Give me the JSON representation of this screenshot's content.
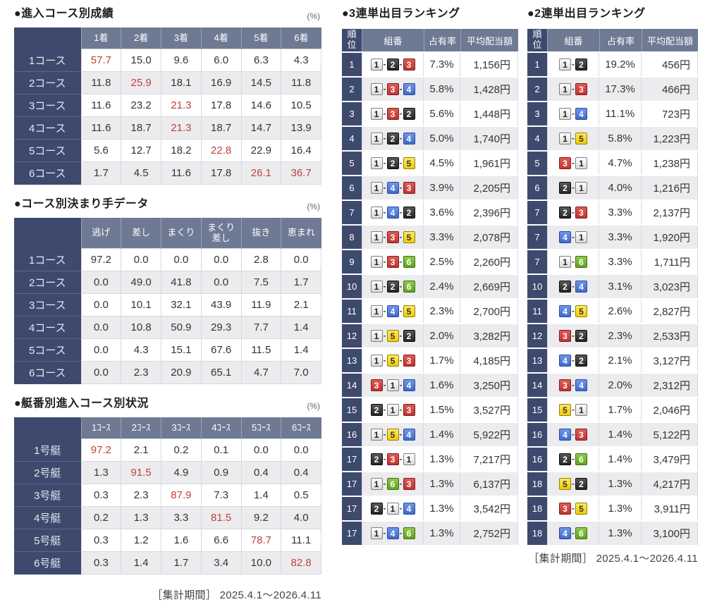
{
  "colors": {
    "navy_header": "#3d4a6e",
    "slate_header": "#6e7a94",
    "row_alt": "#ececef",
    "highlight_red": "#c0403c",
    "boat1": "#eeeeee",
    "boat2": "#333333",
    "boat3": "#cc3a36",
    "boat4": "#4a73d4",
    "boat5": "#f5d52e",
    "boat6": "#6fae2c"
  },
  "left_tables": {
    "course_results": {
      "title": "●進入コース別成績",
      "unit": "(%)",
      "headers": [
        "1着",
        "2着",
        "3着",
        "4着",
        "5着",
        "6着"
      ],
      "rows": [
        {
          "label": "1コース",
          "values": [
            "57.7",
            "15.0",
            "9.6",
            "6.0",
            "6.3",
            "4.3"
          ],
          "red": [
            0
          ]
        },
        {
          "label": "2コース",
          "values": [
            "11.8",
            "25.9",
            "18.1",
            "16.9",
            "14.5",
            "11.8"
          ],
          "red": [
            1
          ]
        },
        {
          "label": "3コース",
          "values": [
            "11.6",
            "23.2",
            "21.3",
            "17.8",
            "14.6",
            "10.5"
          ],
          "red": [
            2
          ]
        },
        {
          "label": "4コース",
          "values": [
            "11.6",
            "18.7",
            "21.3",
            "18.7",
            "14.7",
            "13.9"
          ],
          "red": [
            2
          ]
        },
        {
          "label": "5コース",
          "values": [
            "5.6",
            "12.7",
            "18.2",
            "22.8",
            "22.9",
            "16.4"
          ],
          "red": [
            3
          ]
        },
        {
          "label": "6コース",
          "values": [
            "1.7",
            "4.5",
            "11.6",
            "17.8",
            "26.1",
            "36.7"
          ],
          "red": [
            4,
            5
          ]
        }
      ]
    },
    "kimarite": {
      "title": "●コース別決まり手データ",
      "unit": "(%)",
      "headers": [
        "逃げ",
        "差し",
        "まくり",
        "まくり\n差し",
        "抜き",
        "恵まれ"
      ],
      "rows": [
        {
          "label": "1コース",
          "values": [
            "97.2",
            "0.0",
            "0.0",
            "0.0",
            "2.8",
            "0.0"
          ],
          "red": []
        },
        {
          "label": "2コース",
          "values": [
            "0.0",
            "49.0",
            "41.8",
            "0.0",
            "7.5",
            "1.7"
          ],
          "red": []
        },
        {
          "label": "3コース",
          "values": [
            "0.0",
            "10.1",
            "32.1",
            "43.9",
            "11.9",
            "2.1"
          ],
          "red": []
        },
        {
          "label": "4コース",
          "values": [
            "0.0",
            "10.8",
            "50.9",
            "29.3",
            "7.7",
            "1.4"
          ],
          "red": []
        },
        {
          "label": "5コース",
          "values": [
            "0.0",
            "4.3",
            "15.1",
            "67.6",
            "11.5",
            "1.4"
          ],
          "red": []
        },
        {
          "label": "6コース",
          "values": [
            "0.0",
            "2.3",
            "20.9",
            "65.1",
            "4.7",
            "7.0"
          ],
          "red": []
        }
      ]
    },
    "boat_course": {
      "title": "●艇番別進入コース別状況",
      "unit": "(%)",
      "headers": [
        "1ｺｰｽ",
        "2ｺｰｽ",
        "3ｺｰｽ",
        "4ｺｰｽ",
        "5ｺｰｽ",
        "6ｺｰｽ"
      ],
      "rows": [
        {
          "label": "1号艇",
          "values": [
            "97.2",
            "2.1",
            "0.2",
            "0.1",
            "0.0",
            "0.0"
          ],
          "red": [
            0
          ]
        },
        {
          "label": "2号艇",
          "values": [
            "1.3",
            "91.5",
            "4.9",
            "0.9",
            "0.4",
            "0.4"
          ],
          "red": [
            1
          ]
        },
        {
          "label": "3号艇",
          "values": [
            "0.3",
            "2.3",
            "87.9",
            "7.3",
            "1.4",
            "0.5"
          ],
          "red": [
            2
          ]
        },
        {
          "label": "4号艇",
          "values": [
            "0.2",
            "1.3",
            "3.3",
            "81.5",
            "9.2",
            "4.0"
          ],
          "red": [
            3
          ]
        },
        {
          "label": "5号艇",
          "values": [
            "0.3",
            "1.2",
            "1.6",
            "6.6",
            "78.7",
            "11.1"
          ],
          "red": [
            4
          ]
        },
        {
          "label": "6号艇",
          "values": [
            "0.3",
            "1.4",
            "1.7",
            "3.4",
            "10.0",
            "82.8"
          ],
          "red": [
            5
          ]
        }
      ]
    }
  },
  "rankings": {
    "sanrentan": {
      "title": "●3連単出目ランキング",
      "headers": {
        "rank": "順位",
        "combo": "組番",
        "share": "占有率",
        "payout": "平均配当額"
      },
      "rows": [
        {
          "rank": "1",
          "combo": [
            1,
            2,
            3
          ],
          "share": "7.3%",
          "payout": "1,156円"
        },
        {
          "rank": "2",
          "combo": [
            1,
            3,
            4
          ],
          "share": "5.8%",
          "payout": "1,428円"
        },
        {
          "rank": "3",
          "combo": [
            1,
            3,
            2
          ],
          "share": "5.6%",
          "payout": "1,448円"
        },
        {
          "rank": "4",
          "combo": [
            1,
            2,
            4
          ],
          "share": "5.0%",
          "payout": "1,740円"
        },
        {
          "rank": "5",
          "combo": [
            1,
            2,
            5
          ],
          "share": "4.5%",
          "payout": "1,961円"
        },
        {
          "rank": "6",
          "combo": [
            1,
            4,
            3
          ],
          "share": "3.9%",
          "payout": "2,205円"
        },
        {
          "rank": "7",
          "combo": [
            1,
            4,
            2
          ],
          "share": "3.6%",
          "payout": "2,396円"
        },
        {
          "rank": "8",
          "combo": [
            1,
            3,
            5
          ],
          "share": "3.3%",
          "payout": "2,078円"
        },
        {
          "rank": "9",
          "combo": [
            1,
            3,
            6
          ],
          "share": "2.5%",
          "payout": "2,260円"
        },
        {
          "rank": "10",
          "combo": [
            1,
            2,
            6
          ],
          "share": "2.4%",
          "payout": "2,669円"
        },
        {
          "rank": "11",
          "combo": [
            1,
            4,
            5
          ],
          "share": "2.3%",
          "payout": "2,700円"
        },
        {
          "rank": "12",
          "combo": [
            1,
            5,
            2
          ],
          "share": "2.0%",
          "payout": "3,282円"
        },
        {
          "rank": "13",
          "combo": [
            1,
            5,
            3
          ],
          "share": "1.7%",
          "payout": "4,185円"
        },
        {
          "rank": "14",
          "combo": [
            3,
            1,
            4
          ],
          "share": "1.6%",
          "payout": "3,250円"
        },
        {
          "rank": "15",
          "combo": [
            2,
            1,
            3
          ],
          "share": "1.5%",
          "payout": "3,527円"
        },
        {
          "rank": "16",
          "combo": [
            1,
            5,
            4
          ],
          "share": "1.4%",
          "payout": "5,922円"
        },
        {
          "rank": "17",
          "combo": [
            2,
            3,
            1
          ],
          "share": "1.3%",
          "payout": "7,217円"
        },
        {
          "rank": "17",
          "combo": [
            1,
            6,
            3
          ],
          "share": "1.3%",
          "payout": "6,137円"
        },
        {
          "rank": "17",
          "combo": [
            2,
            1,
            4
          ],
          "share": "1.3%",
          "payout": "3,542円"
        },
        {
          "rank": "17",
          "combo": [
            1,
            4,
            6
          ],
          "share": "1.3%",
          "payout": "2,752円"
        }
      ]
    },
    "nirentan": {
      "title": "●2連単出目ランキング",
      "headers": {
        "rank": "順位",
        "combo": "組番",
        "share": "占有率",
        "payout": "平均配当額"
      },
      "rows": [
        {
          "rank": "1",
          "combo": [
            1,
            2
          ],
          "share": "19.2%",
          "payout": "456円"
        },
        {
          "rank": "2",
          "combo": [
            1,
            3
          ],
          "share": "17.3%",
          "payout": "466円"
        },
        {
          "rank": "3",
          "combo": [
            1,
            4
          ],
          "share": "11.1%",
          "payout": "723円"
        },
        {
          "rank": "4",
          "combo": [
            1,
            5
          ],
          "share": "5.8%",
          "payout": "1,223円"
        },
        {
          "rank": "5",
          "combo": [
            3,
            1
          ],
          "share": "4.7%",
          "payout": "1,238円"
        },
        {
          "rank": "6",
          "combo": [
            2,
            1
          ],
          "share": "4.0%",
          "payout": "1,216円"
        },
        {
          "rank": "7",
          "combo": [
            2,
            3
          ],
          "share": "3.3%",
          "payout": "2,137円"
        },
        {
          "rank": "7",
          "combo": [
            4,
            1
          ],
          "share": "3.3%",
          "payout": "1,920円"
        },
        {
          "rank": "7",
          "combo": [
            1,
            6
          ],
          "share": "3.3%",
          "payout": "1,711円"
        },
        {
          "rank": "10",
          "combo": [
            2,
            4
          ],
          "share": "3.1%",
          "payout": "3,023円"
        },
        {
          "rank": "11",
          "combo": [
            4,
            5
          ],
          "share": "2.6%",
          "payout": "2,827円"
        },
        {
          "rank": "12",
          "combo": [
            3,
            2
          ],
          "share": "2.3%",
          "payout": "2,533円"
        },
        {
          "rank": "13",
          "combo": [
            4,
            2
          ],
          "share": "2.1%",
          "payout": "3,127円"
        },
        {
          "rank": "14",
          "combo": [
            3,
            4
          ],
          "share": "2.0%",
          "payout": "2,312円"
        },
        {
          "rank": "15",
          "combo": [
            5,
            1
          ],
          "share": "1.7%",
          "payout": "2,046円"
        },
        {
          "rank": "16",
          "combo": [
            4,
            3
          ],
          "share": "1.4%",
          "payout": "5,122円"
        },
        {
          "rank": "16",
          "combo": [
            2,
            6
          ],
          "share": "1.4%",
          "payout": "3,479円"
        },
        {
          "rank": "18",
          "combo": [
            5,
            2
          ],
          "share": "1.3%",
          "payout": "4,217円"
        },
        {
          "rank": "18",
          "combo": [
            3,
            5
          ],
          "share": "1.3%",
          "payout": "3,911円"
        },
        {
          "rank": "18",
          "combo": [
            4,
            6
          ],
          "share": "1.3%",
          "payout": "3,100円"
        }
      ]
    }
  },
  "footers": {
    "left": "［集計期間］ 2025.4.1～2026.4.11",
    "right": "［集計期間］ 2025.4.1～2026.4.11"
  }
}
